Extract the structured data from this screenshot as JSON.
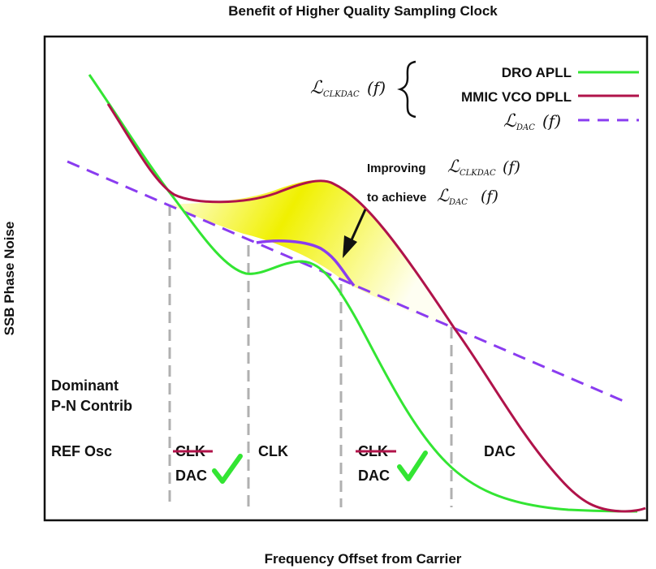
{
  "chart_data": {
    "type": "line",
    "title": "Benefit of Higher Quality Sampling Clock",
    "xlabel": "Frequency Offset from Carrier",
    "ylabel": "SSB Phase Noise",
    "series": [
      {
        "name": "DRO APLL",
        "color": "#33e533"
      },
      {
        "name": "MMIC VCO DPLL",
        "color": "#b0134a"
      },
      {
        "name": "L_DAC(f)",
        "color": "#8a3cf0",
        "style": "dashed"
      }
    ],
    "legend": {
      "group_symbol_main": "ℒ",
      "group_symbol_sub": "CLKDAC",
      "group_symbol_arg": "(f)",
      "dac_symbol_main": "ℒ",
      "dac_symbol_sub": "DAC",
      "dac_symbol_arg": "(f)"
    },
    "annotation": {
      "line1_prefix": "Improving",
      "line1_main": "ℒ",
      "line1_sub": "CLKDAC",
      "line1_arg": "(f)",
      "line2_prefix": "to achieve",
      "line2_main": "ℒ",
      "line2_sub": "DAC",
      "line2_arg": "(f)"
    },
    "regions": {
      "dominant_line1": "Dominant",
      "dominant_line2": "P-N Contrib",
      "items": [
        {
          "top": "REF Osc",
          "bottom": "",
          "top_struck": false,
          "check": false
        },
        {
          "top": "CLK",
          "bottom": "DAC",
          "top_struck": true,
          "check": true
        },
        {
          "top": "CLK",
          "bottom": "",
          "top_struck": false,
          "check": false
        },
        {
          "top": "CLK",
          "bottom": "DAC",
          "top_struck": true,
          "check": true
        },
        {
          "top": "DAC",
          "bottom": "",
          "top_struck": false,
          "check": false
        }
      ]
    },
    "colors": {
      "highlight": "#f0f000",
      "divider": "#b0b0b0",
      "arrow": "#111111",
      "check": "#33e533"
    },
    "grid": false
  }
}
